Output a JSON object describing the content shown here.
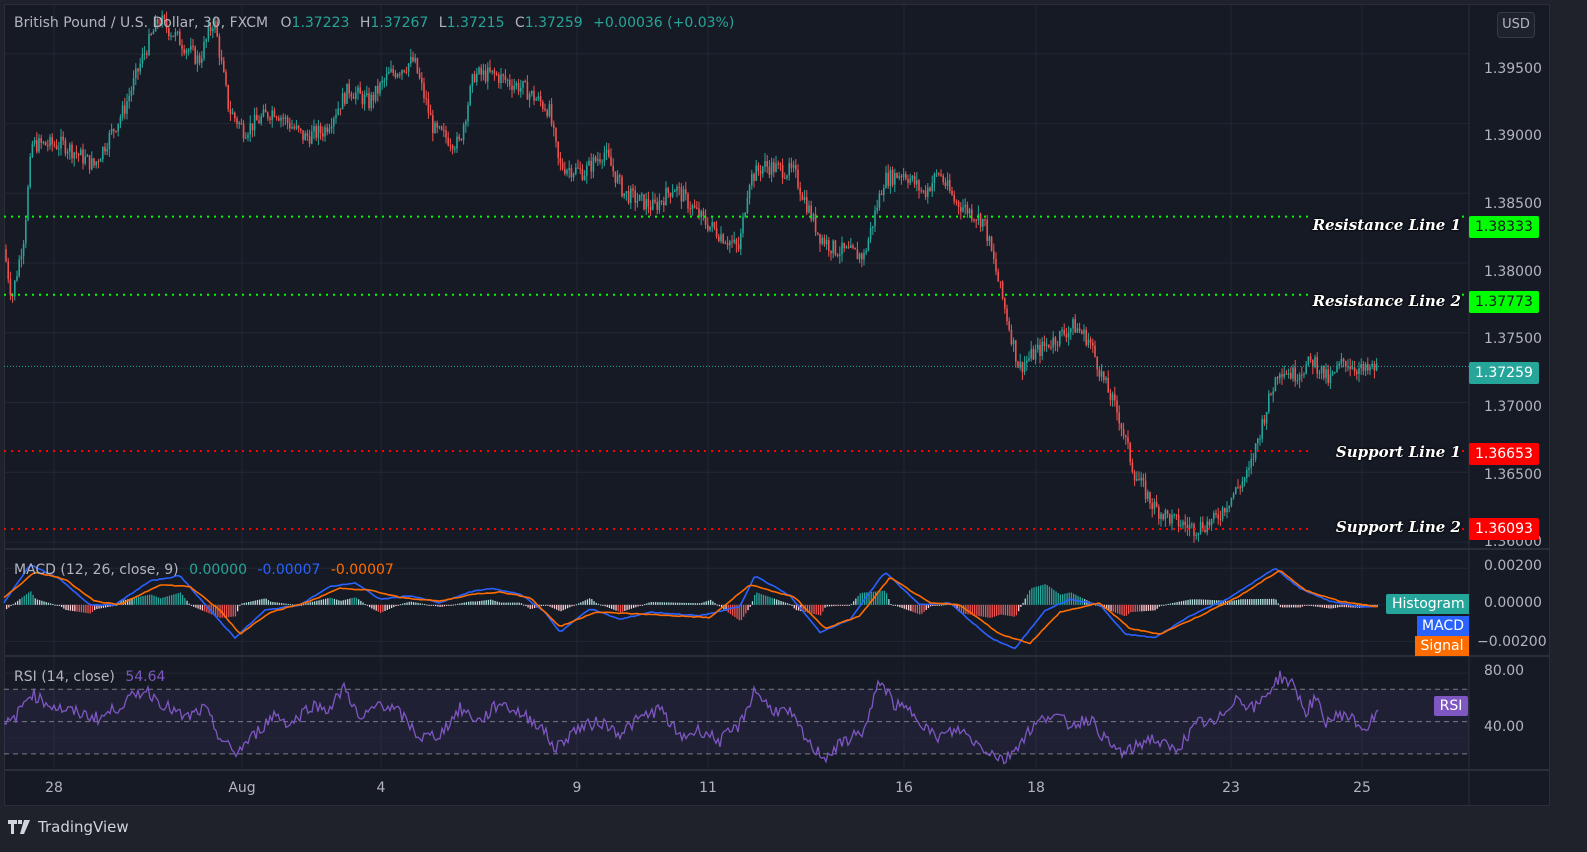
{
  "header": {
    "symbol": "British Pound / U.S. Dollar, 30, FXCM",
    "open_label": "O",
    "open": "1.37223",
    "high_label": "H",
    "high": "1.37267",
    "low_label": "L",
    "low": "1.37215",
    "close_label": "C",
    "close": "1.37259",
    "change": "+0.00036 (+0.03%)"
  },
  "currency_button": "USD",
  "price_axis": {
    "ticks": [
      "1.39500",
      "1.39000",
      "1.38500",
      "1.38000",
      "1.37500",
      "1.37000",
      "1.36500",
      "1.36000"
    ],
    "current_price": "1.37259"
  },
  "levels": [
    {
      "name": "Resistance Line 1",
      "value": "1.38333",
      "color": "#00ff00",
      "text_color": "#131722"
    },
    {
      "name": "Resistance Line 2",
      "value": "1.37773",
      "color": "#00ff00",
      "text_color": "#131722"
    },
    {
      "name": "Support Line 1",
      "value": "1.36653",
      "color": "#ff0000",
      "text_color": "#ffffff"
    },
    {
      "name": "Support Line 2",
      "value": "1.36093",
      "color": "#ff0000",
      "text_color": "#ffffff"
    }
  ],
  "macd": {
    "title": "MACD (12, 26, close, 9)",
    "histogram_value": "0.00000",
    "macd_value": "-0.00007",
    "signal_value": "-0.00007",
    "ticks": [
      "0.00200",
      "0.00000",
      "−0.00200"
    ],
    "tags": {
      "histogram": "Histogram",
      "macd": "MACD",
      "signal": "Signal"
    }
  },
  "rsi": {
    "title": "RSI (14, close)",
    "value": "54.64",
    "ticks": [
      "80.00",
      "40.00"
    ],
    "tag": "RSI"
  },
  "time_axis": {
    "labels": [
      "28",
      "Aug",
      "4",
      "9",
      "11",
      "16",
      "18",
      "23",
      "25"
    ]
  },
  "brand": "TradingView",
  "colors": {
    "up": "#26a69a",
    "down": "#ef5350",
    "macd": "#2962ff",
    "signal": "#ff6d00",
    "rsi": "#7e57c2",
    "background": "#161a25"
  },
  "chart_data": {
    "type": "candlestick",
    "title": "British Pound / U.S. Dollar, 30, FXCM",
    "xlabel": "",
    "ylabel": "USD",
    "x_ticks": [
      "28",
      "Aug",
      "4",
      "9",
      "11",
      "16",
      "18",
      "23",
      "25"
    ],
    "ylim": [
      1.3595,
      1.3985
    ],
    "price_path": [
      [
        0,
        1.381
      ],
      [
        8,
        1.3775
      ],
      [
        20,
        1.382
      ],
      [
        28,
        1.3885
      ],
      [
        60,
        1.3885
      ],
      [
        90,
        1.387
      ],
      [
        105,
        1.389
      ],
      [
        120,
        1.391
      ],
      [
        140,
        1.395
      ],
      [
        155,
        1.3975
      ],
      [
        175,
        1.396
      ],
      [
        195,
        1.3945
      ],
      [
        210,
        1.3975
      ],
      [
        225,
        1.391
      ],
      [
        240,
        1.3895
      ],
      [
        270,
        1.391
      ],
      [
        300,
        1.389
      ],
      [
        320,
        1.3895
      ],
      [
        345,
        1.3925
      ],
      [
        365,
        1.3915
      ],
      [
        385,
        1.3935
      ],
      [
        410,
        1.3945
      ],
      [
        430,
        1.3895
      ],
      [
        455,
        1.3885
      ],
      [
        470,
        1.3935
      ],
      [
        490,
        1.3935
      ],
      [
        520,
        1.3925
      ],
      [
        545,
        1.391
      ],
      [
        555,
        1.387
      ],
      [
        580,
        1.3865
      ],
      [
        600,
        1.388
      ],
      [
        620,
        1.385
      ],
      [
        650,
        1.384
      ],
      [
        670,
        1.3855
      ],
      [
        700,
        1.383
      ],
      [
        735,
        1.381
      ],
      [
        745,
        1.386
      ],
      [
        760,
        1.387
      ],
      [
        790,
        1.3865
      ],
      [
        815,
        1.382
      ],
      [
        830,
        1.381
      ],
      [
        860,
        1.3805
      ],
      [
        880,
        1.386
      ],
      [
        900,
        1.3865
      ],
      [
        920,
        1.385
      ],
      [
        935,
        1.3865
      ],
      [
        950,
        1.3845
      ],
      [
        980,
        1.383
      ],
      [
        1000,
        1.377
      ],
      [
        1015,
        1.3725
      ],
      [
        1030,
        1.3735
      ],
      [
        1050,
        1.3745
      ],
      [
        1070,
        1.3755
      ],
      [
        1085,
        1.3745
      ],
      [
        1100,
        1.3715
      ],
      [
        1115,
        1.369
      ],
      [
        1130,
        1.365
      ],
      [
        1150,
        1.3625
      ],
      [
        1170,
        1.3615
      ],
      [
        1190,
        1.361
      ],
      [
        1210,
        1.3615
      ],
      [
        1225,
        1.363
      ],
      [
        1245,
        1.365
      ],
      [
        1260,
        1.369
      ],
      [
        1275,
        1.3725
      ],
      [
        1290,
        1.372
      ],
      [
        1310,
        1.373
      ],
      [
        1325,
        1.3715
      ],
      [
        1340,
        1.373
      ],
      [
        1360,
        1.3722
      ],
      [
        1378,
        1.37259
      ]
    ],
    "levels": [
      {
        "label": "Resistance Line 1",
        "y": 1.38333
      },
      {
        "label": "Resistance Line 2",
        "y": 1.37773
      },
      {
        "label": "Support Line 1",
        "y": 1.36653
      },
      {
        "label": "Support Line 2",
        "y": 1.36093
      }
    ],
    "macd": {
      "ylim": [
        -0.0028,
        0.003
      ],
      "macd_path": [
        [
          0,
          -0.0002
        ],
        [
          30,
          0.0022
        ],
        [
          60,
          0.0014
        ],
        [
          90,
          0.0
        ],
        [
          115,
          0.0
        ],
        [
          150,
          0.0013
        ],
        [
          180,
          0.0016
        ],
        [
          215,
          -0.0006
        ],
        [
          235,
          -0.0018
        ],
        [
          265,
          -0.0003
        ],
        [
          300,
          0.0
        ],
        [
          330,
          0.001
        ],
        [
          355,
          0.0012
        ],
        [
          380,
          0.0003
        ],
        [
          410,
          0.0005
        ],
        [
          440,
          0.0001
        ],
        [
          470,
          0.0007
        ],
        [
          490,
          0.0009
        ],
        [
          520,
          0.0006
        ],
        [
          545,
          -0.0004
        ],
        [
          560,
          -0.0015
        ],
        [
          590,
          -0.0002
        ],
        [
          620,
          -0.0008
        ],
        [
          650,
          -0.0004
        ],
        [
          700,
          -0.0006
        ],
        [
          740,
          -0.0001
        ],
        [
          755,
          0.0016
        ],
        [
          790,
          0.0005
        ],
        [
          820,
          -0.0015
        ],
        [
          850,
          -0.0008
        ],
        [
          885,
          0.0018
        ],
        [
          920,
          0.0
        ],
        [
          950,
          0.0001
        ],
        [
          990,
          -0.0018
        ],
        [
          1015,
          -0.0024
        ],
        [
          1045,
          -0.0003
        ],
        [
          1070,
          0.0003
        ],
        [
          1100,
          0.0
        ],
        [
          1125,
          -0.0016
        ],
        [
          1155,
          -0.0018
        ],
        [
          1190,
          -0.0006
        ],
        [
          1230,
          0.0004
        ],
        [
          1275,
          0.002
        ],
        [
          1300,
          0.0009
        ],
        [
          1330,
          0.0002
        ],
        [
          1360,
          -0.0001
        ],
        [
          1378,
          -0.0001
        ]
      ],
      "signal_path": [
        [
          0,
          0.0002
        ],
        [
          35,
          0.0018
        ],
        [
          65,
          0.0014
        ],
        [
          95,
          0.0002
        ],
        [
          120,
          0.0
        ],
        [
          160,
          0.0011
        ],
        [
          190,
          0.001
        ],
        [
          220,
          -0.0003
        ],
        [
          240,
          -0.0016
        ],
        [
          270,
          -0.0004
        ],
        [
          305,
          0.0001
        ],
        [
          340,
          0.0009
        ],
        [
          370,
          0.0008
        ],
        [
          400,
          0.0004
        ],
        [
          440,
          0.0002
        ],
        [
          475,
          0.0006
        ],
        [
          500,
          0.0007
        ],
        [
          530,
          0.0004
        ],
        [
          560,
          -0.0012
        ],
        [
          595,
          -0.0004
        ],
        [
          640,
          -0.0005
        ],
        [
          710,
          -0.0007
        ],
        [
          750,
          0.0011
        ],
        [
          795,
          0.0004
        ],
        [
          825,
          -0.0013
        ],
        [
          860,
          -0.0006
        ],
        [
          890,
          0.0015
        ],
        [
          930,
          0.0001
        ],
        [
          960,
          0.0
        ],
        [
          1000,
          -0.0016
        ],
        [
          1030,
          -0.0021
        ],
        [
          1060,
          -0.0004
        ],
        [
          1100,
          0.0001
        ],
        [
          1130,
          -0.0013
        ],
        [
          1160,
          -0.0016
        ],
        [
          1200,
          -0.0006
        ],
        [
          1240,
          0.0005
        ],
        [
          1280,
          0.0019
        ],
        [
          1305,
          0.0008
        ],
        [
          1340,
          0.0002
        ],
        [
          1378,
          -0.0001
        ]
      ]
    },
    "rsi": {
      "ylim": [
        20,
        90
      ],
      "bands": [
        70,
        50,
        30
      ],
      "path": [
        [
          0,
          45
        ],
        [
          15,
          52
        ],
        [
          30,
          68
        ],
        [
          45,
          62
        ],
        [
          60,
          58
        ],
        [
          80,
          55
        ],
        [
          100,
          52
        ],
        [
          120,
          60
        ],
        [
          145,
          70
        ],
        [
          165,
          60
        ],
        [
          185,
          52
        ],
        [
          205,
          58
        ],
        [
          220,
          40
        ],
        [
          235,
          30
        ],
        [
          255,
          42
        ],
        [
          275,
          55
        ],
        [
          290,
          48
        ],
        [
          310,
          60
        ],
        [
          330,
          58
        ],
        [
          345,
          72
        ],
        [
          360,
          50
        ],
        [
          380,
          62
        ],
        [
          400,
          55
        ],
        [
          420,
          40
        ],
        [
          440,
          42
        ],
        [
          460,
          58
        ],
        [
          480,
          50
        ],
        [
          500,
          62
        ],
        [
          520,
          55
        ],
        [
          540,
          48
        ],
        [
          555,
          33
        ],
        [
          575,
          45
        ],
        [
          600,
          50
        ],
        [
          620,
          43
        ],
        [
          640,
          52
        ],
        [
          660,
          58
        ],
        [
          680,
          40
        ],
        [
          700,
          45
        ],
        [
          720,
          38
        ],
        [
          740,
          48
        ],
        [
          755,
          70
        ],
        [
          770,
          58
        ],
        [
          790,
          55
        ],
        [
          810,
          35
        ],
        [
          825,
          28
        ],
        [
          845,
          38
        ],
        [
          865,
          45
        ],
        [
          880,
          76
        ],
        [
          895,
          60
        ],
        [
          915,
          55
        ],
        [
          935,
          40
        ],
        [
          960,
          45
        ],
        [
          980,
          35
        ],
        [
          1005,
          26
        ],
        [
          1030,
          45
        ],
        [
          1050,
          55
        ],
        [
          1070,
          48
        ],
        [
          1090,
          52
        ],
        [
          1110,
          35
        ],
        [
          1125,
          30
        ],
        [
          1150,
          40
        ],
        [
          1175,
          32
        ],
        [
          1200,
          50
        ],
        [
          1215,
          48
        ],
        [
          1235,
          65
        ],
        [
          1255,
          58
        ],
        [
          1280,
          78
        ],
        [
          1295,
          72
        ],
        [
          1305,
          55
        ],
        [
          1315,
          65
        ],
        [
          1325,
          50
        ],
        [
          1345,
          55
        ],
        [
          1365,
          45
        ],
        [
          1378,
          54.64
        ]
      ]
    }
  }
}
